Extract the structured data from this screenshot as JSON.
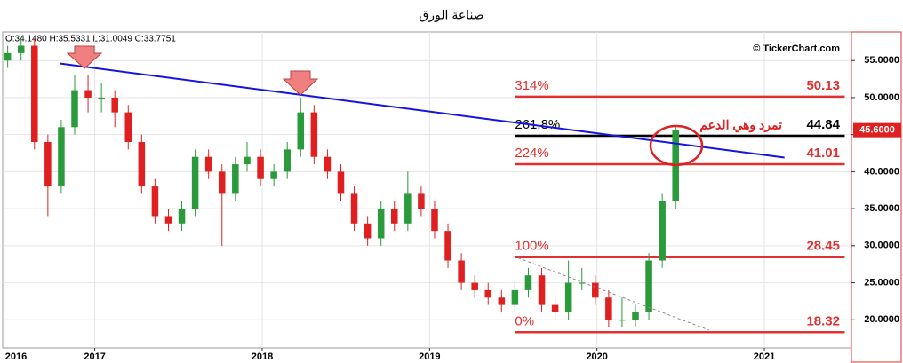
{
  "chart_data": {
    "type": "candlestick",
    "title": "صناعة الورق",
    "info": "O:34.1480 H:35.5331 L:31.0049 C:33.7751",
    "watermark": "© TickerChart.com",
    "annotation": "تمرد وهي الدعم",
    "start_label": "2016",
    "up_color": "#2a9a3a",
    "down_color": "#e02020",
    "xlim": [
      2016.45,
      2021.52
    ],
    "xticks": [
      2017,
      2018,
      2019,
      2020,
      2021
    ],
    "ylim": [
      16.2,
      58.86
    ],
    "yticks": [
      {
        "value": 20,
        "label": "20.0000"
      },
      {
        "value": 25,
        "label": "25.0000"
      },
      {
        "value": 30,
        "label": "30.0000"
      },
      {
        "value": 35,
        "label": "35.0000"
      },
      {
        "value": 40,
        "label": "40.0000"
      },
      {
        "value": 45,
        "label": "45.0000"
      },
      {
        "value": 50,
        "label": "50.0000"
      },
      {
        "value": 55,
        "label": "55.0000"
      }
    ],
    "grid": true,
    "last_price": {
      "value": 45.6,
      "label": "45.6000"
    },
    "x": [
      2016.48,
      2016.56,
      2016.64,
      2016.72,
      2016.8,
      2016.88,
      2016.96,
      2017.04,
      2017.12,
      2017.2,
      2017.28,
      2017.36,
      2017.44,
      2017.52,
      2017.6,
      2017.68,
      2017.76,
      2017.84,
      2017.91,
      2017.99,
      2018.07,
      2018.15,
      2018.23,
      2018.31,
      2018.39,
      2018.47,
      2018.55,
      2018.63,
      2018.71,
      2018.79,
      2018.87,
      2018.95,
      2019.03,
      2019.11,
      2019.19,
      2019.27,
      2019.35,
      2019.43,
      2019.51,
      2019.59,
      2019.67,
      2019.75,
      2019.83,
      2019.91,
      2019.99,
      2020.07,
      2020.15,
      2020.23,
      2020.31,
      2020.39,
      2020.47
    ],
    "ohlc": [
      [
        55,
        57,
        54,
        56
      ],
      [
        56,
        58,
        55,
        57
      ],
      [
        57,
        58,
        43,
        44
      ],
      [
        44,
        45,
        34,
        38
      ],
      [
        38,
        47,
        37,
        46
      ],
      [
        46,
        53,
        45,
        51
      ],
      [
        51,
        53,
        48,
        50
      ],
      [
        50,
        52,
        48,
        50
      ],
      [
        50,
        51,
        46,
        48
      ],
      [
        48,
        49,
        43,
        44
      ],
      [
        44,
        45,
        37,
        38
      ],
      [
        38,
        39,
        33,
        34
      ],
      [
        34,
        35,
        32,
        33
      ],
      [
        33,
        36,
        32,
        35
      ],
      [
        35,
        43,
        34,
        42
      ],
      [
        42,
        43,
        39,
        40
      ],
      [
        40,
        41,
        30,
        37
      ],
      [
        37,
        42,
        36,
        41
      ],
      [
        41,
        44,
        40,
        42
      ],
      [
        42,
        43,
        38,
        39
      ],
      [
        39,
        41,
        38,
        40
      ],
      [
        40,
        44,
        39,
        43
      ],
      [
        43,
        50,
        42,
        48
      ],
      [
        48,
        49,
        41,
        42
      ],
      [
        42,
        43,
        39,
        40
      ],
      [
        40,
        41,
        36,
        37
      ],
      [
        37,
        38,
        32,
        33
      ],
      [
        33,
        34,
        30,
        31
      ],
      [
        31,
        36,
        30,
        35
      ],
      [
        35,
        36,
        32,
        33
      ],
      [
        33,
        40,
        32,
        37
      ],
      [
        37,
        38,
        34,
        35
      ],
      [
        35,
        36,
        31,
        32
      ],
      [
        32,
        33,
        27,
        28
      ],
      [
        28,
        29,
        24,
        25
      ],
      [
        25,
        26,
        23,
        24
      ],
      [
        24,
        25,
        22,
        23
      ],
      [
        23,
        24,
        21,
        22
      ],
      [
        22,
        25,
        21,
        24
      ],
      [
        24,
        27,
        23,
        26
      ],
      [
        26,
        27,
        21,
        22
      ],
      [
        22,
        23,
        20,
        21
      ],
      [
        21,
        28,
        20,
        25
      ],
      [
        25,
        27,
        24,
        25
      ],
      [
        25,
        26,
        22,
        23
      ],
      [
        23,
        24,
        19,
        20
      ],
      [
        20,
        23,
        19,
        20
      ],
      [
        20,
        22,
        19,
        21
      ],
      [
        21,
        29,
        20,
        28
      ],
      [
        28,
        37,
        27,
        36
      ],
      [
        36,
        46,
        35,
        45.6
      ]
    ],
    "trend_lines": [
      {
        "x": [
          2016.79,
          2021.12
        ],
        "y": [
          54.6,
          41.9
        ],
        "color": "#1414e0",
        "dashed": false
      },
      {
        "x": [
          2019.5,
          2020.67
        ],
        "y": [
          28.6,
          18.6
        ],
        "color": "#888888",
        "dashed": true
      }
    ],
    "fib_levels": [
      {
        "label": "314%",
        "value": 50.13,
        "color": "#e03030"
      },
      {
        "label": "261.8%",
        "value": 44.84,
        "color": "#000000"
      },
      {
        "label": "224%",
        "value": 41.01,
        "color": "#e03030"
      },
      {
        "label": "100%",
        "value": 28.45,
        "color": "#e03030"
      },
      {
        "label": "0%",
        "value": 18.32,
        "color": "#e03030"
      }
    ],
    "fib_x": [
      2019.51,
      2021.48
    ]
  }
}
